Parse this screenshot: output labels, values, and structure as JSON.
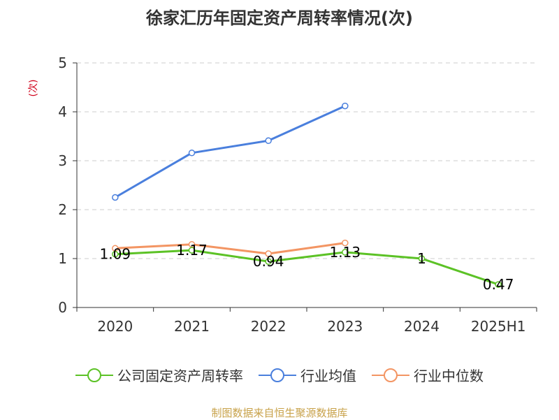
{
  "title": "徐家汇历年固定资产周转率情况(次)",
  "source_note": "制图数据来自恒生聚源数据库",
  "colors": {
    "company": "#5cc226",
    "industry_avg": "#4a7fdd",
    "industry_median": "#f39563",
    "axis": "#333333",
    "grid": "#cccccc",
    "ylabel": "#d0021b"
  },
  "chart_data": {
    "type": "line",
    "title": "徐家汇历年固定资产周转率情况(次)",
    "xlabel": "",
    "ylabel": "(次)",
    "categories": [
      "2020",
      "2021",
      "2022",
      "2023",
      "2024",
      "2025H1"
    ],
    "ylim": [
      0,
      5
    ],
    "yticks": [
      0,
      1,
      2,
      3,
      4,
      5
    ],
    "grid": true,
    "legend_position": "bottom",
    "series": [
      {
        "name": "公司固定资产周转率",
        "color_key": "company",
        "values": [
          1.09,
          1.17,
          0.94,
          1.13,
          1,
          0.47
        ],
        "labels": [
          "1.09",
          "1.17",
          "0.94",
          "1.13",
          "1",
          "0.47"
        ]
      },
      {
        "name": "行业均值",
        "color_key": "industry_avg",
        "values": [
          2.25,
          3.16,
          3.41,
          4.12,
          null,
          null
        ]
      },
      {
        "name": "行业中位数",
        "color_key": "industry_median",
        "values": [
          1.21,
          1.29,
          1.1,
          1.32,
          null,
          null
        ]
      }
    ]
  }
}
